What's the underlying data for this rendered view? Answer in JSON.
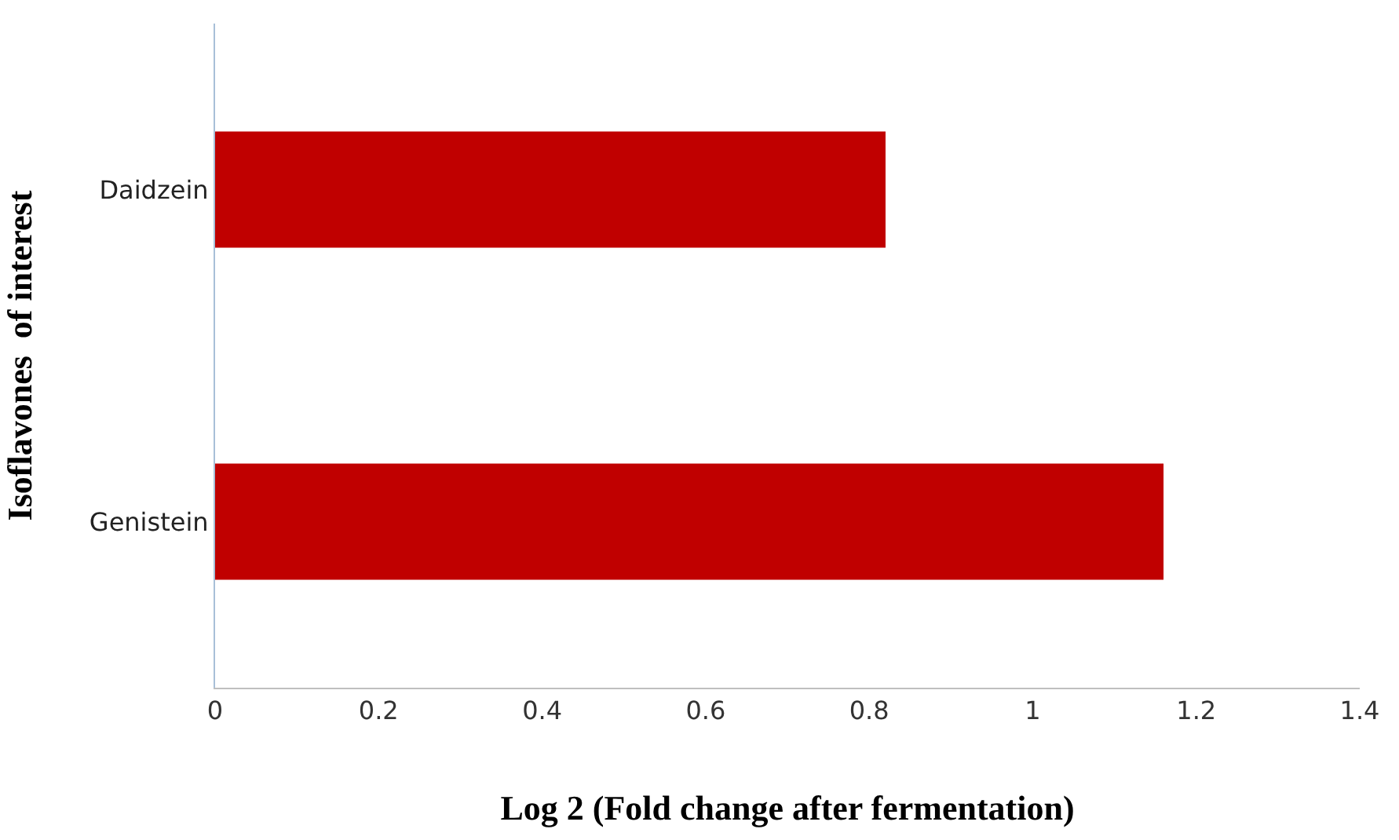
{
  "chart_data": {
    "type": "bar",
    "orientation": "horizontal",
    "xlabel": "Log 2 (Fold change after fermentation)",
    "ylabel": "Isoflavones  of interest",
    "categories": [
      "Daidzein",
      "Genistein"
    ],
    "series": [
      {
        "color": "#c00000",
        "values": [
          0.82,
          1.16
        ]
      }
    ],
    "xlim": [
      0,
      1.4
    ],
    "xticks": [
      0,
      0.2,
      0.4,
      0.6,
      0.8,
      1,
      1.2,
      1.4
    ]
  }
}
